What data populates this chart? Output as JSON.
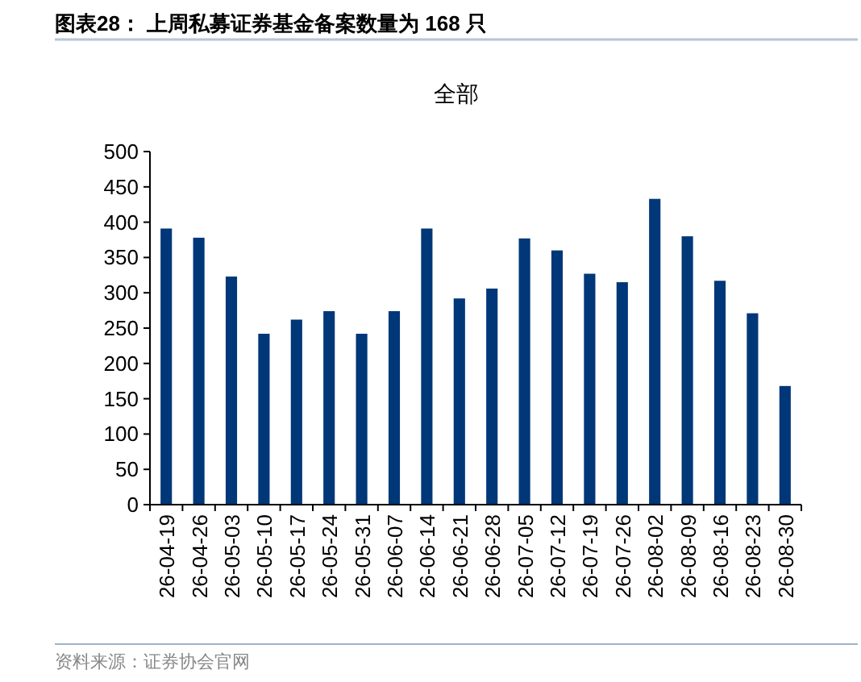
{
  "chart_data": {
    "type": "bar",
    "title": "图表28：  上周私募证券基金备案数量为 168 只",
    "subtitle": "全部",
    "categories": [
      "26-04-19",
      "26-04-26",
      "26-05-03",
      "26-05-10",
      "26-05-17",
      "26-05-24",
      "26-05-31",
      "26-06-07",
      "26-06-14",
      "26-06-21",
      "26-06-28",
      "26-07-05",
      "26-07-12",
      "26-07-19",
      "26-07-26",
      "26-08-02",
      "26-08-09",
      "26-08-16",
      "26-08-23",
      "26-08-30"
    ],
    "values": [
      391,
      378,
      323,
      242,
      262,
      274,
      242,
      274,
      391,
      292,
      306,
      377,
      360,
      327,
      315,
      433,
      380,
      317,
      271,
      168
    ],
    "color": "#003778",
    "ylim": [
      0,
      500
    ],
    "yticks": [
      0,
      50,
      100,
      150,
      200,
      250,
      300,
      350,
      400,
      450,
      500
    ],
    "annotations": [
      "资料来源：证券协会官网"
    ]
  }
}
